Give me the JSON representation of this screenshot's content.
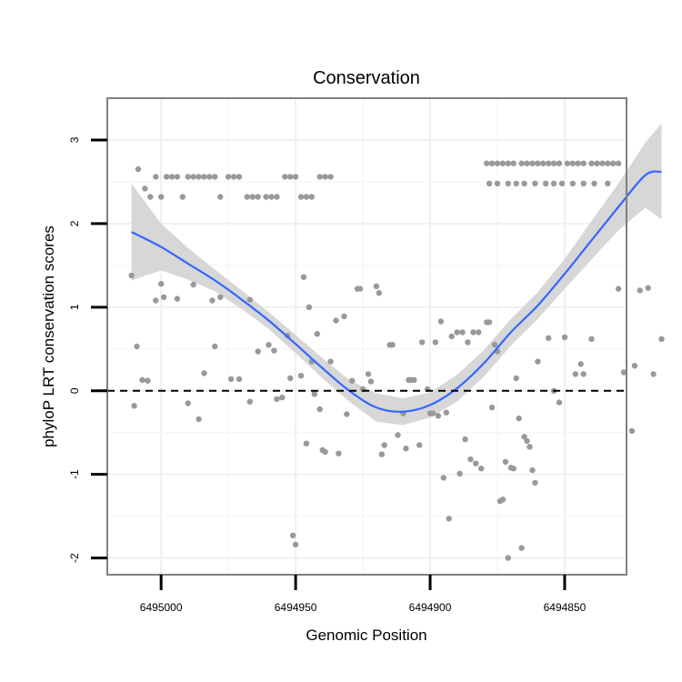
{
  "chart_data": {
    "type": "scatter",
    "title": "Conservation",
    "xlabel": "Genomic Position",
    "ylabel": "phyloP LRT conservation scores",
    "x_reversed": true,
    "xlim": [
      6495020,
      6494827
    ],
    "ylim": [
      -2.2,
      3.5
    ],
    "x_ticks": [
      6495000,
      6494950,
      6494900,
      6494850
    ],
    "x_tick_labels": [
      "6495000",
      "6494950",
      "6494900",
      "6494850"
    ],
    "y_ticks": [
      -2,
      -1,
      0,
      1,
      2,
      3
    ],
    "y_tick_labels": [
      "-2",
      "-1",
      "0",
      "1",
      "2",
      "3"
    ],
    "grid": true,
    "reference_line": {
      "y": 0,
      "style": "dashed",
      "color": "#000000"
    },
    "colors": {
      "points": "#999999",
      "smooth": "#3366FF",
      "band": "#D3D3D3",
      "panel_border": "#808080"
    },
    "points": [
      [
        6495008.5,
        2.65
      ],
      [
        6495006,
        2.42
      ],
      [
        6495004,
        2.32
      ],
      [
        6495002,
        2.56
      ],
      [
        6495000,
        2.32
      ],
      [
        6494998,
        2.56
      ],
      [
        6494996,
        2.56
      ],
      [
        6494994,
        2.56
      ],
      [
        6494992,
        2.32
      ],
      [
        6494990,
        2.56
      ],
      [
        6494988,
        2.56
      ],
      [
        6494986,
        2.56
      ],
      [
        6494984,
        2.56
      ],
      [
        6494982,
        2.56
      ],
      [
        6494980,
        2.56
      ],
      [
        6494978,
        2.32
      ],
      [
        6494975,
        2.56
      ],
      [
        6494973,
        2.56
      ],
      [
        6494971,
        2.56
      ],
      [
        6494968,
        2.32
      ],
      [
        6494966,
        2.32
      ],
      [
        6494964,
        2.32
      ],
      [
        6494961,
        2.32
      ],
      [
        6494959,
        2.32
      ],
      [
        6494957,
        2.32
      ],
      [
        6494954,
        2.56
      ],
      [
        6494952,
        2.56
      ],
      [
        6494950,
        2.56
      ],
      [
        6494948,
        2.32
      ],
      [
        6494946,
        2.32
      ],
      [
        6494944,
        2.32
      ],
      [
        6494941,
        2.56
      ],
      [
        6494939,
        2.56
      ],
      [
        6494937,
        2.56
      ],
      [
        6494879,
        2.72
      ],
      [
        6494877,
        2.72
      ],
      [
        6494875,
        2.72
      ],
      [
        6494873,
        2.72
      ],
      [
        6494871,
        2.72
      ],
      [
        6494869,
        2.72
      ],
      [
        6494866,
        2.72
      ],
      [
        6494864,
        2.72
      ],
      [
        6494862,
        2.72
      ],
      [
        6494860,
        2.72
      ],
      [
        6494858,
        2.72
      ],
      [
        6494856,
        2.72
      ],
      [
        6494854,
        2.72
      ],
      [
        6494852,
        2.72
      ],
      [
        6494849,
        2.72
      ],
      [
        6494847,
        2.72
      ],
      [
        6494845,
        2.72
      ],
      [
        6494843,
        2.72
      ],
      [
        6494840,
        2.72
      ],
      [
        6494838,
        2.72
      ],
      [
        6494836,
        2.72
      ],
      [
        6494834,
        2.72
      ],
      [
        6494832,
        2.72
      ],
      [
        6494830,
        2.72
      ],
      [
        6494878,
        2.48
      ],
      [
        6494875,
        2.48
      ],
      [
        6494871,
        2.48
      ],
      [
        6494868,
        2.48
      ],
      [
        6494865,
        2.48
      ],
      [
        6494861,
        2.48
      ],
      [
        6494857,
        2.48
      ],
      [
        6494854,
        2.48
      ],
      [
        6494851,
        2.48
      ],
      [
        6494847,
        2.48
      ],
      [
        6494843,
        2.48
      ],
      [
        6494839,
        2.48
      ],
      [
        6494834,
        2.48
      ],
      [
        6495011,
        1.38
      ],
      [
        6495010,
        -0.18
      ],
      [
        6495009,
        0.53
      ],
      [
        6495007,
        0.13
      ],
      [
        6495005,
        0.12
      ],
      [
        6495002,
        1.08
      ],
      [
        6495000,
        1.28
      ],
      [
        6494999,
        1.12
      ],
      [
        6494994,
        1.1
      ],
      [
        6494990,
        -0.15
      ],
      [
        6494988,
        1.27
      ],
      [
        6494986,
        -0.34
      ],
      [
        6494984,
        0.21
      ],
      [
        6494981,
        1.08
      ],
      [
        6494980,
        0.53
      ],
      [
        6494978,
        1.12
      ],
      [
        6494974,
        0.14
      ],
      [
        6494971,
        0.14
      ],
      [
        6494967,
        -0.13
      ],
      [
        6494967,
        1.09
      ],
      [
        6494964,
        0.47
      ],
      [
        6494960,
        0.55
      ],
      [
        6494958,
        0.48
      ],
      [
        6494957,
        -0.1
      ],
      [
        6494955,
        -0.08
      ],
      [
        6494953,
        0.66
      ],
      [
        6494952,
        0.15
      ],
      [
        6494951,
        -1.73
      ],
      [
        6494950,
        -1.84
      ],
      [
        6494948,
        0.18
      ],
      [
        6494947,
        1.36
      ],
      [
        6494946,
        -0.63
      ],
      [
        6494945,
        1.0
      ],
      [
        6494944,
        0.35
      ],
      [
        6494943,
        -0.04
      ],
      [
        6494942,
        0.68
      ],
      [
        6494941,
        -0.22
      ],
      [
        6494940,
        -0.71
      ],
      [
        6494939,
        -0.73
      ],
      [
        6494937,
        0.35
      ],
      [
        6494935,
        0.84
      ],
      [
        6494934,
        -0.75
      ],
      [
        6494932,
        0.89
      ],
      [
        6494931,
        -0.28
      ],
      [
        6494929,
        0.12
      ],
      [
        6494927,
        1.22
      ],
      [
        6494926,
        1.22
      ],
      [
        6494925,
        0.02
      ],
      [
        6494923,
        0.2
      ],
      [
        6494922,
        0.11
      ],
      [
        6494920,
        1.25
      ],
      [
        6494919,
        1.17
      ],
      [
        6494918,
        -0.76
      ],
      [
        6494917,
        -0.65
      ],
      [
        6494915,
        0.55
      ],
      [
        6494914,
        0.55
      ],
      [
        6494912,
        -0.53
      ],
      [
        6494910,
        -0.27
      ],
      [
        6494909,
        -0.69
      ],
      [
        6494908,
        0.13
      ],
      [
        6494907,
        0.13
      ],
      [
        6494906,
        0.13
      ],
      [
        6494904,
        -0.65
      ],
      [
        6494903,
        0.58
      ],
      [
        6494901,
        0.02
      ],
      [
        6494900,
        -0.27
      ],
      [
        6494899,
        -0.27
      ],
      [
        6494898,
        0.58
      ],
      [
        6494897,
        -0.3
      ],
      [
        6494896,
        0.83
      ],
      [
        6494895,
        -1.04
      ],
      [
        6494894,
        -0.26
      ],
      [
        6494893,
        -1.53
      ],
      [
        6494892,
        0.65
      ],
      [
        6494890,
        0.7
      ],
      [
        6494889,
        -0.99
      ],
      [
        6494888,
        0.7
      ],
      [
        6494887,
        -0.58
      ],
      [
        6494886,
        0.58
      ],
      [
        6494885,
        -0.82
      ],
      [
        6494884,
        0.7
      ],
      [
        6494883,
        -0.87
      ],
      [
        6494882,
        0.7
      ],
      [
        6494881,
        -0.93
      ],
      [
        6494879,
        0.82
      ],
      [
        6494878,
        0.82
      ],
      [
        6494877,
        -0.2
      ],
      [
        6494876,
        0.55
      ],
      [
        6494875,
        0.47
      ],
      [
        6494874,
        -1.32
      ],
      [
        6494873,
        -1.3
      ],
      [
        6494872,
        -0.85
      ],
      [
        6494871,
        -2.0
      ],
      [
        6494870,
        -0.92
      ],
      [
        6494869,
        -0.93
      ],
      [
        6494868,
        0.15
      ],
      [
        6494867,
        -0.33
      ],
      [
        6494866,
        -1.88
      ],
      [
        6494865,
        -0.55
      ],
      [
        6494864,
        -0.6
      ],
      [
        6494863,
        -0.67
      ],
      [
        6494862,
        -0.95
      ],
      [
        6494861,
        -1.1
      ],
      [
        6494860,
        0.35
      ],
      [
        6494856,
        0.63
      ],
      [
        6494854,
        0.0
      ],
      [
        6494852,
        -0.14
      ],
      [
        6494850,
        0.64
      ],
      [
        6494846,
        0.2
      ],
      [
        6494844,
        0.32
      ],
      [
        6494843,
        0.2
      ],
      [
        6494840,
        0.62
      ],
      [
        6494830,
        1.22
      ],
      [
        6494828,
        0.22
      ],
      [
        6494825,
        -0.48
      ],
      [
        6494824,
        0.3
      ],
      [
        6494822,
        1.2
      ],
      [
        6494819,
        1.23
      ],
      [
        6494817,
        0.2
      ],
      [
        6494814,
        0.62
      ]
    ],
    "smooth": {
      "x": [
        6495011,
        6495000,
        6494990,
        6494980,
        6494970,
        6494960,
        6494950,
        6494940,
        6494930,
        6494920,
        6494910,
        6494900,
        6494890,
        6494880,
        6494870,
        6494860,
        6494850,
        6494840,
        6494830,
        6494820,
        6494814
      ],
      "y": [
        1.9,
        1.72,
        1.52,
        1.32,
        1.09,
        0.84,
        0.56,
        0.27,
        0.0,
        -0.2,
        -0.25,
        -0.17,
        0.03,
        0.33,
        0.7,
        1.02,
        1.4,
        1.8,
        2.2,
        2.58,
        2.62
      ],
      "lower": [
        1.32,
        1.44,
        1.33,
        1.19,
        0.98,
        0.74,
        0.45,
        0.15,
        -0.13,
        -0.37,
        -0.41,
        -0.32,
        -0.13,
        0.17,
        0.54,
        0.86,
        1.22,
        1.57,
        1.92,
        2.19,
        2.05
      ],
      "upper": [
        2.48,
        2.0,
        1.71,
        1.45,
        1.2,
        0.94,
        0.67,
        0.39,
        0.13,
        -0.03,
        -0.09,
        -0.02,
        0.19,
        0.49,
        0.86,
        1.18,
        1.58,
        2.03,
        2.48,
        2.97,
        3.2
      ]
    }
  }
}
